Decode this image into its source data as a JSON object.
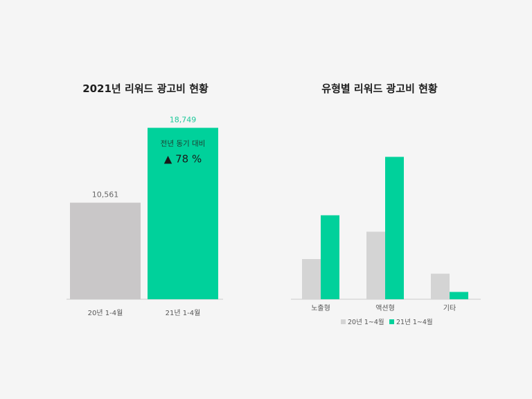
{
  "chart_data": [
    {
      "type": "bar",
      "title": "2021년 리워드 광고비 현황",
      "categories": [
        "20년 1-4월",
        "21년 1-4월"
      ],
      "values": [
        10561,
        18749
      ],
      "value_labels": [
        "10,561",
        "18,749"
      ],
      "annotation": {
        "text": "전년 동기 대비",
        "change": "▲ 78 %"
      },
      "ylim": [
        0,
        20000
      ],
      "grid": false,
      "colors": [
        "#c9c7c8",
        "#00d19b"
      ]
    },
    {
      "type": "bar",
      "title": "유형별 리워드 광고비 현황",
      "categories": [
        "노출형",
        "액션형",
        "기타"
      ],
      "series": [
        {
          "name": "20년 1~4월",
          "values": [
            2.2,
            3.7,
            1.4
          ]
        },
        {
          "name": "21년 1~4월",
          "values": [
            4.6,
            7.8,
            0.4
          ]
        }
      ],
      "ylim": [
        0,
        8.5
      ],
      "grid": false,
      "legend": "bottom-center",
      "colors": [
        "#d4d4d4",
        "#00d19b"
      ]
    }
  ]
}
